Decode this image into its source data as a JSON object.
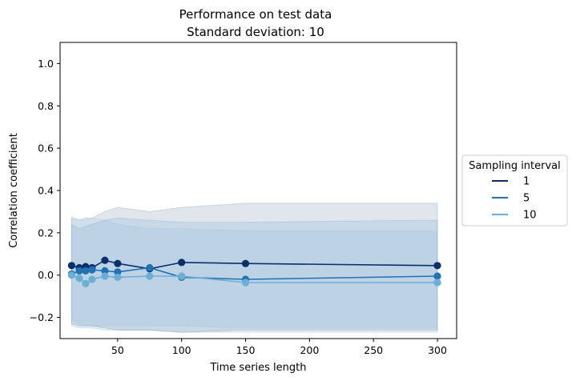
{
  "chart_data": {
    "type": "line",
    "title": "Performance on test data",
    "subtitle": "Standard deviation: 10",
    "xlabel": "Time series length",
    "ylabel": "Correlation coefficient",
    "xlim": [
      5,
      315
    ],
    "ylim": [
      -0.3,
      1.1
    ],
    "x_ticks": [
      50,
      100,
      150,
      200,
      250,
      300
    ],
    "x_tick_labels": [
      "50",
      "100",
      "150",
      "200",
      "250",
      "300"
    ],
    "y_ticks": [
      -0.2,
      0.0,
      0.2,
      0.4,
      0.6,
      0.8,
      1.0
    ],
    "y_tick_labels": [
      "−0.2",
      "0.0",
      "0.2",
      "0.4",
      "0.6",
      "0.8",
      "1.0"
    ],
    "grid": false,
    "legend": {
      "title": "Sampling interval",
      "placement": "right, outside plot"
    },
    "x": [
      14,
      20,
      25,
      30,
      40,
      50,
      75,
      100,
      150,
      300
    ],
    "series": [
      {
        "name": "1",
        "color": "#08306b",
        "values": [
          0.045,
          0.035,
          0.04,
          0.035,
          0.07,
          0.055,
          0.03,
          0.06,
          0.055,
          0.045
        ],
        "band_upper": [
          0.27,
          0.26,
          0.27,
          0.27,
          0.3,
          0.32,
          0.3,
          0.32,
          0.34,
          0.34
        ],
        "band_lower": [
          -0.23,
          -0.24,
          -0.24,
          -0.24,
          -0.25,
          -0.26,
          -0.26,
          -0.27,
          -0.26,
          -0.26
        ]
      },
      {
        "name": "5",
        "color": "#2171b5",
        "values": [
          0.005,
          0.02,
          0.02,
          0.025,
          0.02,
          0.015,
          0.035,
          -0.01,
          -0.02,
          -0.005
        ],
        "band_upper": [
          0.24,
          0.22,
          0.23,
          0.24,
          0.26,
          0.27,
          0.26,
          0.25,
          0.25,
          0.26
        ],
        "band_lower": [
          -0.24,
          -0.25,
          -0.25,
          -0.25,
          -0.26,
          -0.26,
          -0.26,
          -0.27,
          -0.27,
          -0.27
        ]
      },
      {
        "name": "10",
        "color": "#6baed6",
        "values": [
          0.0,
          -0.015,
          -0.04,
          -0.02,
          -0.005,
          -0.01,
          -0.005,
          -0.005,
          -0.035,
          -0.035
        ],
        "band_upper": [
          0.28,
          0.26,
          0.26,
          0.27,
          0.26,
          0.24,
          0.22,
          0.22,
          0.21,
          0.21
        ],
        "band_lower": [
          -0.21,
          -0.23,
          -0.24,
          -0.24,
          -0.24,
          -0.24,
          -0.24,
          -0.24,
          -0.25,
          -0.25
        ]
      }
    ]
  }
}
